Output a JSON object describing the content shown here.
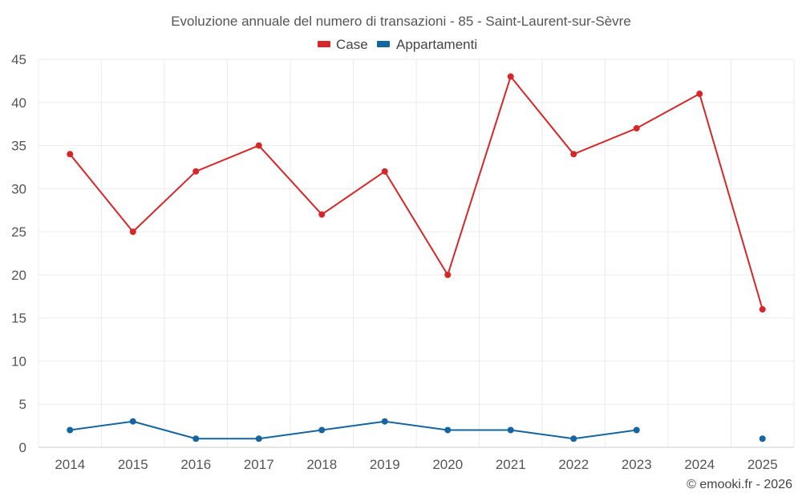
{
  "chart_data": {
    "type": "line",
    "title": "Evoluzione annuale del numero di transazioni - 85 - Saint-Laurent-sur-Sèvre",
    "categories": [
      "2014",
      "2015",
      "2016",
      "2017",
      "2018",
      "2019",
      "2020",
      "2021",
      "2022",
      "2023",
      "2024",
      "2025"
    ],
    "series": [
      {
        "name": "Case",
        "color": "#d62728",
        "values": [
          34,
          25,
          32,
          35,
          27,
          32,
          20,
          43,
          34,
          37,
          41,
          16
        ]
      },
      {
        "name": "Appartamenti",
        "color": "#1565a0",
        "values": [
          2,
          3,
          1,
          1,
          2,
          3,
          2,
          2,
          1,
          2,
          null,
          1
        ]
      }
    ],
    "ylim": [
      0,
      45
    ],
    "yticks": [
      0,
      5,
      10,
      15,
      20,
      25,
      30,
      35,
      40,
      45
    ],
    "grid": true,
    "legend": "top-center",
    "xlabel": "",
    "ylabel": ""
  },
  "credit": "© emooki.fr - 2026"
}
